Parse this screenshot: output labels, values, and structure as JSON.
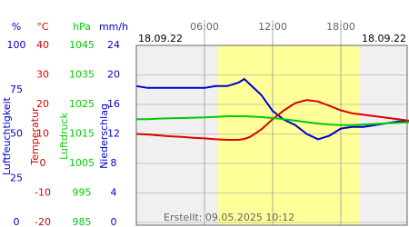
{
  "chart_data": {
    "type": "line",
    "dates": [
      "18.09.22",
      "18.09.22"
    ],
    "footer": "Erstellt: 09.05.2025 10:12",
    "xlim": [
      0,
      24
    ],
    "xticks": [
      {
        "value": 6,
        "label": "06:00"
      },
      {
        "value": 12,
        "label": "12:00"
      },
      {
        "value": 18,
        "label": "18:00"
      }
    ],
    "daylight": [
      7.2,
      19.6
    ],
    "daylight_color": "#ffff99",
    "axes": [
      {
        "unit": "%",
        "title": "Luftfeuchtigkeit",
        "color": "#0000cc",
        "lim": [
          0,
          100
        ],
        "ticks": [
          0,
          25,
          50,
          75,
          100
        ]
      },
      {
        "unit": "°C",
        "title": "Temperatur",
        "color": "#dd0000",
        "lim": [
          -20,
          40
        ],
        "ticks": [
          -20,
          -10,
          0,
          10,
          20,
          30,
          40
        ]
      },
      {
        "unit": "hPa",
        "title": "Luftdruck",
        "color": "#00cc00",
        "lim": [
          985,
          1045
        ],
        "ticks": [
          985,
          995,
          1005,
          1015,
          1025,
          1035,
          1045
        ]
      },
      {
        "unit": "mm/h",
        "title": "Niederschlag",
        "color": "#0000cc",
        "lim": [
          0,
          24
        ],
        "ticks": [
          0,
          4,
          8,
          12,
          16,
          20,
          24
        ]
      }
    ],
    "x": [
      0,
      1,
      2,
      3,
      4,
      5,
      6,
      7,
      8,
      9,
      9.5,
      10,
      11,
      12,
      13,
      14,
      15,
      16,
      17,
      18,
      19,
      20,
      21,
      22,
      23,
      24
    ],
    "series": [
      {
        "name": "Luftfeuchtigkeit",
        "axis": 0,
        "color": "#0000cc",
        "values": [
          77,
          76,
          76,
          76,
          76,
          76,
          76,
          77,
          77,
          79,
          81,
          78,
          72,
          63,
          58,
          55,
          50,
          47,
          49,
          53,
          54,
          54,
          55,
          56,
          57,
          57
        ]
      },
      {
        "name": "Temperatur",
        "axis": 1,
        "color": "#dd0000",
        "values": [
          10,
          9.8,
          9.5,
          9.2,
          9,
          8.7,
          8.5,
          8.2,
          8,
          8,
          8.3,
          9,
          11.5,
          15,
          18,
          20.5,
          21.5,
          21,
          19.5,
          18,
          17,
          16.5,
          16,
          15.5,
          15,
          14.5
        ]
      },
      {
        "name": "Luftdruck",
        "axis": 2,
        "color": "#00cc00",
        "values": [
          1020,
          1020,
          1020.2,
          1020.3,
          1020.4,
          1020.5,
          1020.6,
          1020.8,
          1021,
          1021,
          1021,
          1020.9,
          1020.7,
          1020.4,
          1020,
          1019.5,
          1019,
          1018.5,
          1018.2,
          1018,
          1018,
          1018.2,
          1018.4,
          1018.6,
          1018.8,
          1019
        ]
      }
    ]
  }
}
